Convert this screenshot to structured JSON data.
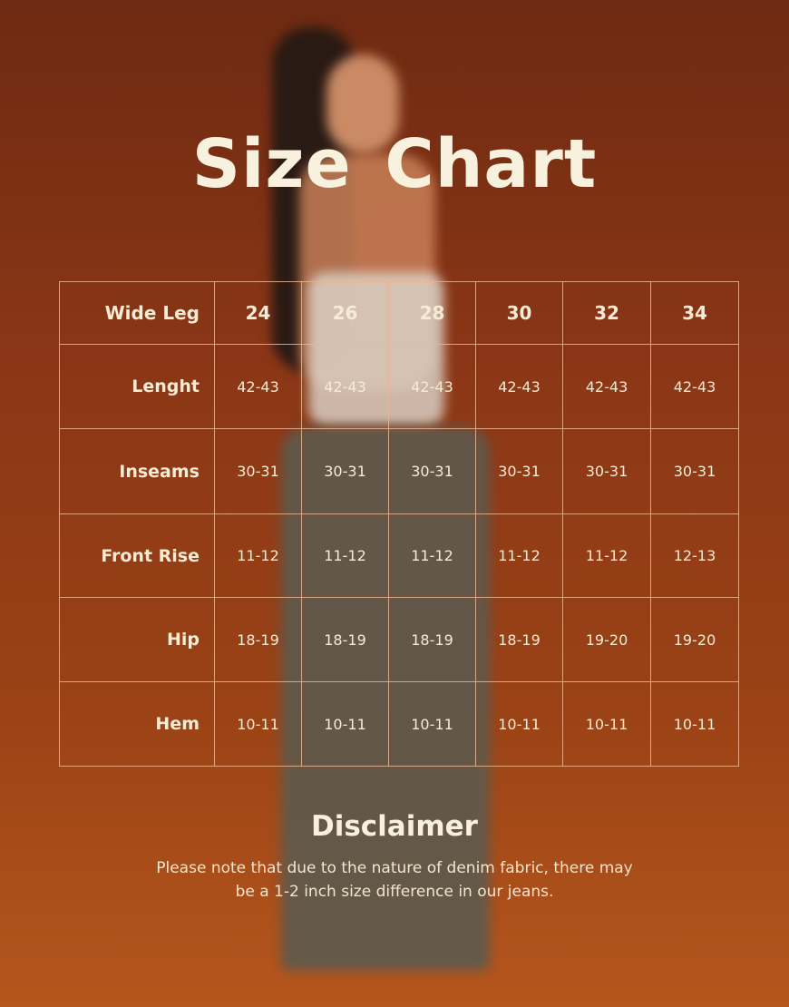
{
  "title": "Size Chart",
  "table": {
    "corner": "Wide Leg",
    "sizes": [
      "24",
      "26",
      "28",
      "30",
      "32",
      "34"
    ],
    "rows": [
      {
        "label": "Lenght",
        "values": [
          "42-43",
          "42-43",
          "42-43",
          "42-43",
          "42-43",
          "42-43"
        ]
      },
      {
        "label": "Inseams",
        "values": [
          "30-31",
          "30-31",
          "30-31",
          "30-31",
          "30-31",
          "30-31"
        ]
      },
      {
        "label": "Front Rise",
        "values": [
          "11-12",
          "11-12",
          "11-12",
          "11-12",
          "11-12",
          "12-13"
        ]
      },
      {
        "label": "Hip",
        "values": [
          "18-19",
          "18-19",
          "18-19",
          "18-19",
          "19-20",
          "19-20"
        ]
      },
      {
        "label": "Hem",
        "values": [
          "10-11",
          "10-11",
          "10-11",
          "10-11",
          "10-11",
          "10-11"
        ]
      }
    ]
  },
  "disclaimer": {
    "title": "Disclaimer",
    "text": "Please note that due to the nature of denim fabric, there may be a 1-2 inch size difference in our jeans."
  },
  "colors": {
    "background": "#8a3616",
    "text": "#f7f1de",
    "grid": "#f0b48c"
  }
}
